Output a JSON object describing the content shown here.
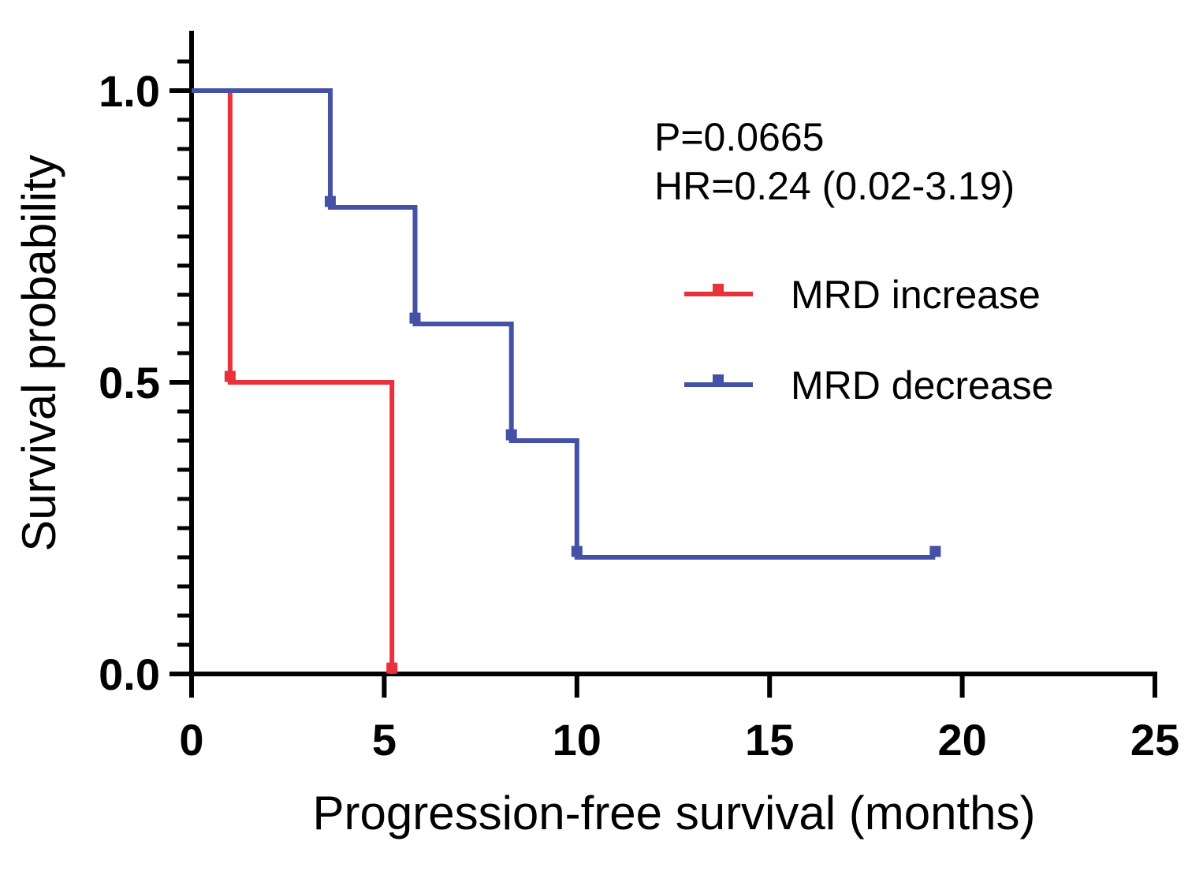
{
  "chart_data": {
    "type": "line",
    "subtype": "kaplan-meier step curve",
    "xlabel": "Progression-free survival (months)",
    "ylabel": "Survival probability",
    "xlim": [
      0,
      25
    ],
    "ylim": [
      0,
      1.1
    ],
    "x_ticks": [
      "0",
      "5",
      "10",
      "15",
      "20",
      "25"
    ],
    "y_ticks": [
      "0.0",
      "0.5",
      "1.0"
    ],
    "grid": false,
    "legend_position": "right",
    "annotations": [
      "P=0.0665",
      "HR=0.24 (0.02-3.19)"
    ],
    "series": [
      {
        "name": "MRD increase",
        "color": "#e8313a",
        "steps": [
          {
            "x": 0,
            "y": 1.0
          },
          {
            "x": 1.0,
            "y": 0.5
          },
          {
            "x": 5.2,
            "y": 0.0
          }
        ],
        "end_x": 5.2,
        "censor_marks": [
          {
            "x": 1.0,
            "y": 0.51
          },
          {
            "x": 5.2,
            "y": 0.01
          }
        ]
      },
      {
        "name": "MRD decrease",
        "color": "#4451a6",
        "steps": [
          {
            "x": 0,
            "y": 1.0
          },
          {
            "x": 3.6,
            "y": 0.8
          },
          {
            "x": 5.8,
            "y": 0.6
          },
          {
            "x": 8.3,
            "y": 0.4
          },
          {
            "x": 10.0,
            "y": 0.2
          }
        ],
        "end_x": 19.3,
        "censor_marks": [
          {
            "x": 3.6,
            "y": 0.81
          },
          {
            "x": 5.8,
            "y": 0.61
          },
          {
            "x": 8.3,
            "y": 0.41
          },
          {
            "x": 10.0,
            "y": 0.21
          },
          {
            "x": 19.3,
            "y": 0.21
          }
        ]
      }
    ]
  }
}
